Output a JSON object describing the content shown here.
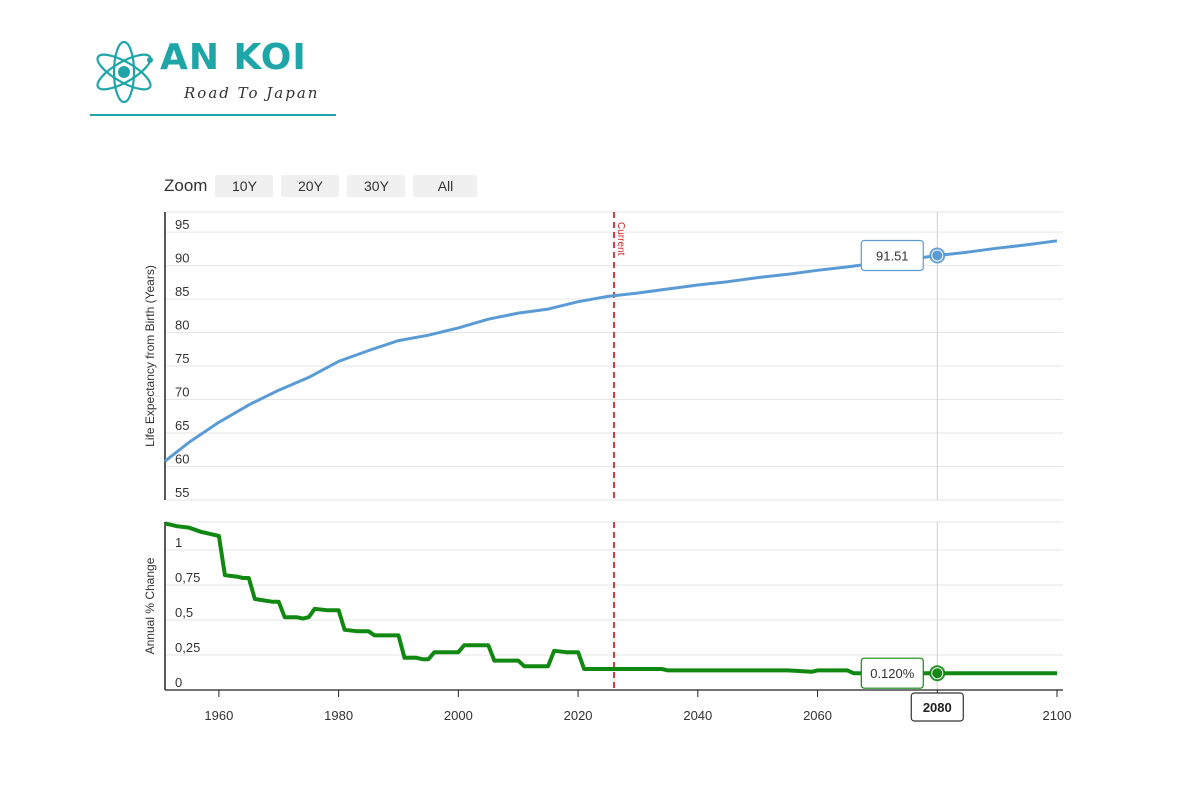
{
  "brand": {
    "name": "AN KOI",
    "tagline": "Road To Japan",
    "accent_color": "#1ea5a8",
    "icon": "atom-icon"
  },
  "zoom": {
    "label": "Zoom",
    "buttons": [
      "10Y",
      "20Y",
      "30Y",
      "All"
    ]
  },
  "chart_data": [
    {
      "type": "line",
      "ylabel": "Life Expectancy from Birth (Years)",
      "ylim": [
        55,
        98
      ],
      "yticks": [
        55,
        60,
        65,
        70,
        75,
        80,
        85,
        90,
        95
      ],
      "xlim": [
        1951,
        2101
      ],
      "color": "#5b9bd5",
      "grid": true,
      "x": [
        1951,
        1955,
        1960,
        1965,
        1970,
        1975,
        1980,
        1985,
        1990,
        1995,
        2000,
        2005,
        2010,
        2015,
        2020,
        2025,
        2030,
        2035,
        2040,
        2045,
        2050,
        2055,
        2060,
        2065,
        2070,
        2075,
        2080,
        2085,
        2090,
        2095,
        2100
      ],
      "y": [
        60.8,
        63.6,
        66.6,
        69.2,
        71.4,
        73.3,
        75.7,
        77.3,
        78.8,
        79.6,
        80.7,
        82.0,
        82.9,
        83.5,
        84.6,
        85.4,
        85.9,
        86.5,
        87.1,
        87.6,
        88.2,
        88.7,
        89.3,
        89.8,
        90.4,
        90.9,
        91.51,
        92.0,
        92.6,
        93.1,
        93.7
      ],
      "current_marker": {
        "x": 2026,
        "label": "Current",
        "color": "#d62728"
      },
      "highlight": {
        "x": 2080,
        "value": 91.51,
        "label": "91.51"
      }
    },
    {
      "type": "line",
      "ylabel": "Annual % Change",
      "ylim": [
        0,
        1.2
      ],
      "yticks": [
        0,
        0.25,
        0.5,
        0.75,
        1
      ],
      "ytick_labels": [
        "0",
        "0,25",
        "0,5",
        "0,75",
        "1"
      ],
      "xlim": [
        1951,
        2101
      ],
      "xticks": [
        1960,
        1980,
        2000,
        2020,
        2040,
        2060,
        2080,
        2100
      ],
      "color": "#118811",
      "grid": true,
      "x": [
        1951,
        1953,
        1955,
        1957,
        1959,
        1960,
        1961,
        1963,
        1964,
        1965,
        1966,
        1969,
        1970,
        1971,
        1973,
        1974,
        1975,
        1976,
        1978,
        1979,
        1980,
        1981,
        1983,
        1984,
        1985,
        1986,
        1989,
        1990,
        1991,
        1993,
        1994,
        1995,
        1996,
        1999,
        2000,
        2001,
        2004,
        2005,
        2006,
        2009,
        2010,
        2011,
        2014,
        2015,
        2016,
        2018,
        2019,
        2020,
        2021,
        2034,
        2035,
        2054,
        2055,
        2059,
        2060,
        2065,
        2066,
        2100
      ],
      "y": [
        1.19,
        1.17,
        1.16,
        1.13,
        1.11,
        1.1,
        0.82,
        0.81,
        0.8,
        0.8,
        0.65,
        0.63,
        0.63,
        0.52,
        0.52,
        0.51,
        0.52,
        0.58,
        0.57,
        0.57,
        0.57,
        0.43,
        0.42,
        0.42,
        0.42,
        0.39,
        0.39,
        0.39,
        0.23,
        0.23,
        0.22,
        0.22,
        0.27,
        0.27,
        0.27,
        0.32,
        0.32,
        0.32,
        0.21,
        0.21,
        0.21,
        0.17,
        0.17,
        0.17,
        0.28,
        0.27,
        0.27,
        0.27,
        0.15,
        0.15,
        0.14,
        0.14,
        0.14,
        0.13,
        0.14,
        0.14,
        0.12,
        0.12
      ],
      "current_marker": {
        "x": 2026,
        "color": "#d62728"
      },
      "highlight": {
        "x": 2080,
        "value": 0.12,
        "label": "0.120%"
      },
      "x_highlight_label": "2080"
    }
  ]
}
